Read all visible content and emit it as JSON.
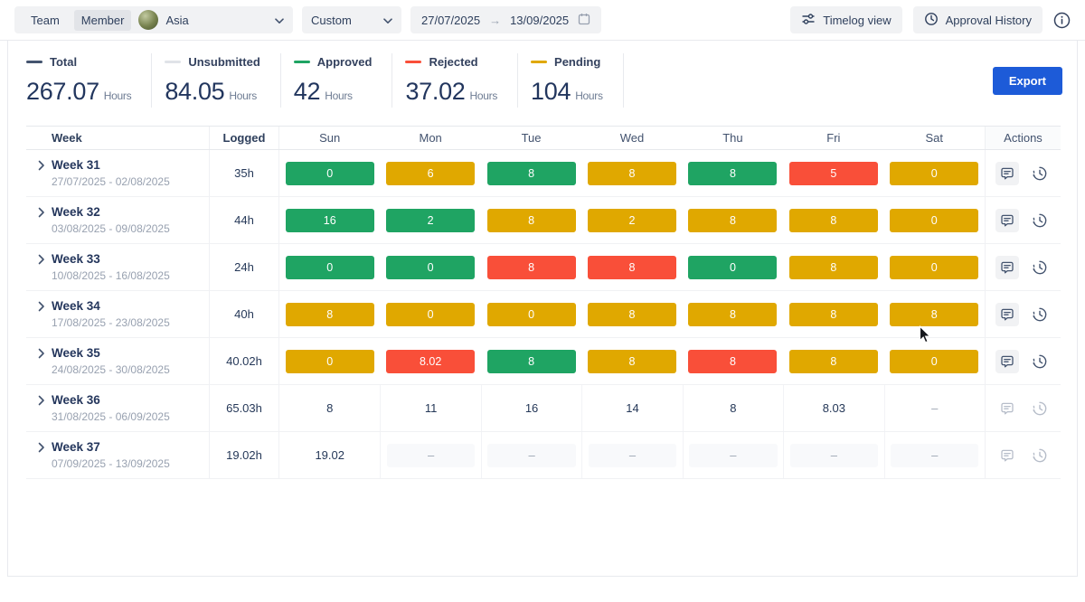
{
  "topbar": {
    "team_label": "Team",
    "member_label": "Member",
    "selected_user": "Asia",
    "range_preset": "Custom",
    "date_from": "27/07/2025",
    "date_to": "13/09/2025",
    "timelog_view_label": "Timelog view",
    "approval_history_label": "Approval History"
  },
  "summary": {
    "hours_unit": "Hours",
    "export_label": "Export",
    "stats": [
      {
        "label": "Total",
        "value": "267.07",
        "color": "#44546f"
      },
      {
        "label": "Unsubmitted",
        "value": "84.05",
        "color": "#e0e3e8"
      },
      {
        "label": "Approved",
        "value": "42",
        "color": "#1fa463"
      },
      {
        "label": "Rejected",
        "value": "37.02",
        "color": "#f94f39"
      },
      {
        "label": "Pending",
        "value": "104",
        "color": "#e0a800"
      }
    ]
  },
  "table": {
    "columns": [
      "Week",
      "Logged",
      "Sun",
      "Mon",
      "Tue",
      "Wed",
      "Thu",
      "Fri",
      "Sat",
      "Actions"
    ],
    "status_colors": {
      "approved": "#1fa463",
      "pending": "#e0a800",
      "rejected": "#f94f39"
    },
    "rows": [
      {
        "week": "Week 31",
        "range": "27/07/2025 - 02/08/2025",
        "logged": "35h",
        "submitted": true,
        "days": [
          {
            "value": "0",
            "status": "approved"
          },
          {
            "value": "6",
            "status": "pending"
          },
          {
            "value": "8",
            "status": "approved"
          },
          {
            "value": "8",
            "status": "pending"
          },
          {
            "value": "8",
            "status": "approved"
          },
          {
            "value": "5",
            "status": "rejected"
          },
          {
            "value": "0",
            "status": "pending"
          }
        ]
      },
      {
        "week": "Week 32",
        "range": "03/08/2025 - 09/08/2025",
        "logged": "44h",
        "submitted": true,
        "days": [
          {
            "value": "16",
            "status": "approved"
          },
          {
            "value": "2",
            "status": "approved"
          },
          {
            "value": "8",
            "status": "pending"
          },
          {
            "value": "2",
            "status": "pending"
          },
          {
            "value": "8",
            "status": "pending"
          },
          {
            "value": "8",
            "status": "pending"
          },
          {
            "value": "0",
            "status": "pending"
          }
        ]
      },
      {
        "week": "Week 33",
        "range": "10/08/2025 - 16/08/2025",
        "logged": "24h",
        "submitted": true,
        "days": [
          {
            "value": "0",
            "status": "approved"
          },
          {
            "value": "0",
            "status": "approved"
          },
          {
            "value": "8",
            "status": "rejected"
          },
          {
            "value": "8",
            "status": "rejected"
          },
          {
            "value": "0",
            "status": "approved"
          },
          {
            "value": "8",
            "status": "pending"
          },
          {
            "value": "0",
            "status": "pending"
          }
        ]
      },
      {
        "week": "Week 34",
        "range": "17/08/2025 - 23/08/2025",
        "logged": "40h",
        "submitted": true,
        "days": [
          {
            "value": "8",
            "status": "pending"
          },
          {
            "value": "0",
            "status": "pending"
          },
          {
            "value": "0",
            "status": "pending"
          },
          {
            "value": "8",
            "status": "pending"
          },
          {
            "value": "8",
            "status": "pending"
          },
          {
            "value": "8",
            "status": "pending"
          },
          {
            "value": "8",
            "status": "pending"
          }
        ]
      },
      {
        "week": "Week 35",
        "range": "24/08/2025 - 30/08/2025",
        "logged": "40.02h",
        "submitted": true,
        "days": [
          {
            "value": "0",
            "status": "pending"
          },
          {
            "value": "8.02",
            "status": "rejected"
          },
          {
            "value": "8",
            "status": "approved"
          },
          {
            "value": "8",
            "status": "pending"
          },
          {
            "value": "8",
            "status": "rejected"
          },
          {
            "value": "8",
            "status": "pending"
          },
          {
            "value": "0",
            "status": "pending"
          }
        ]
      },
      {
        "week": "Week 36",
        "range": "31/08/2025 - 06/09/2025",
        "logged": "65.03h",
        "submitted": false,
        "days": [
          {
            "value": "8",
            "status": "unsubmitted"
          },
          {
            "value": "11",
            "status": "unsubmitted"
          },
          {
            "value": "16",
            "status": "unsubmitted"
          },
          {
            "value": "14",
            "status": "unsubmitted"
          },
          {
            "value": "8",
            "status": "unsubmitted"
          },
          {
            "value": "8.03",
            "status": "unsubmitted"
          },
          {
            "value": "–",
            "status": "dash"
          }
        ]
      },
      {
        "week": "Week 37",
        "range": "07/09/2025 - 13/09/2025",
        "logged": "19.02h",
        "submitted": false,
        "days": [
          {
            "value": "19.02",
            "status": "unsubmitted"
          },
          {
            "value": "–",
            "status": "empty"
          },
          {
            "value": "–",
            "status": "empty"
          },
          {
            "value": "–",
            "status": "empty"
          },
          {
            "value": "–",
            "status": "empty"
          },
          {
            "value": "–",
            "status": "empty"
          },
          {
            "value": "–",
            "status": "empty"
          }
        ]
      }
    ]
  }
}
